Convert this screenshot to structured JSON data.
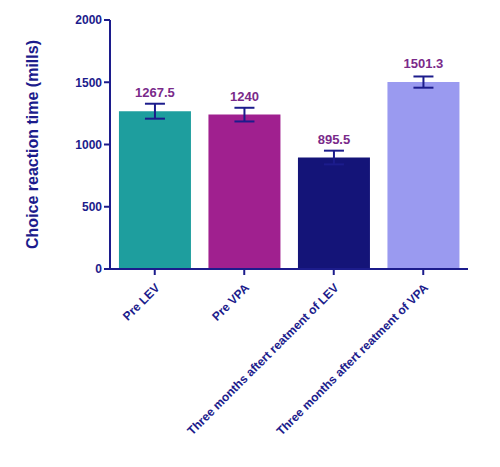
{
  "chart_data": {
    "type": "bar",
    "categories": [
      "Pre LEV",
      "Pre VPA",
      "Three months aftert reatment of LEV",
      "Three months aftert reatment of VPA"
    ],
    "values": [
      1267.5,
      1240,
      895.5,
      1501.3
    ],
    "errors": [
      60,
      55,
      55,
      45
    ],
    "colors": [
      "#1e9e9e",
      "#a0208f",
      "#141478",
      "#9a9af0"
    ],
    "y_label": "Choice reaction time (mills)",
    "ylim": [
      0,
      2000
    ],
    "yticks": [
      0,
      500,
      1000,
      1500,
      2000
    ],
    "data_labels": true,
    "grid": false
  }
}
